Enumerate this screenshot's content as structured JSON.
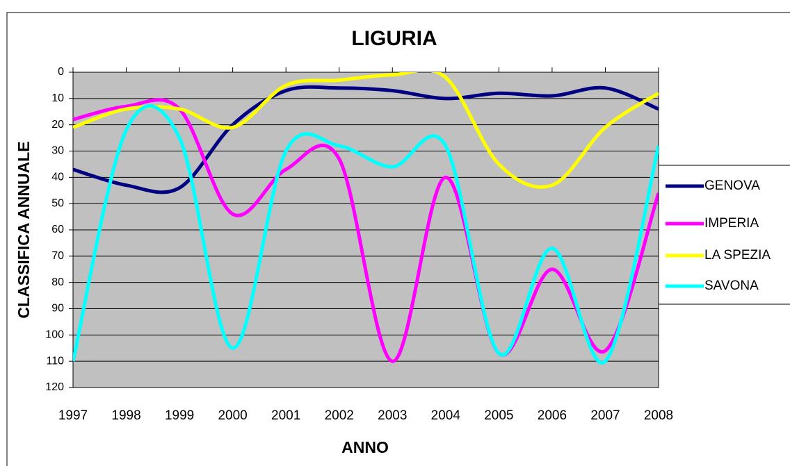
{
  "chart_data": {
    "type": "line",
    "title": "LIGURIA",
    "x_label": "ANNO",
    "y_label": "CLASSIFICA ANNUALE",
    "x": [
      1997,
      1998,
      1999,
      2000,
      2001,
      2002,
      2003,
      2004,
      2005,
      2006,
      2007,
      2008
    ],
    "xlim": [
      1997,
      2008
    ],
    "xticks": [
      1997,
      1998,
      1999,
      2000,
      2001,
      2002,
      2003,
      2004,
      2005,
      2006,
      2007,
      2008
    ],
    "ylim": [
      0,
      120
    ],
    "yticks": [
      0,
      10,
      20,
      30,
      40,
      50,
      60,
      70,
      80,
      90,
      100,
      110,
      120
    ],
    "y_reversed": true,
    "grid": true,
    "smooth": true,
    "legend": "right",
    "plot_background": "#c0c0c0",
    "series": [
      {
        "name": "GENOVA",
        "color": "#000080",
        "values": [
          37,
          43,
          44,
          20,
          7,
          6,
          7,
          10,
          8,
          9,
          6,
          14
        ]
      },
      {
        "name": "IMPERIA",
        "color": "#ff00ff",
        "values": [
          18,
          13,
          14,
          54,
          37,
          33,
          110,
          40,
          107,
          75,
          106,
          46
        ]
      },
      {
        "name": "LA SPEZIA",
        "color": "#ffff00",
        "values": [
          21,
          14,
          14,
          21,
          5,
          3,
          1,
          2,
          35,
          43,
          21,
          8
        ]
      },
      {
        "name": "SAVONA",
        "color": "#00ffff",
        "values": [
          110,
          22,
          25,
          105,
          30,
          28,
          36,
          28,
          107,
          67,
          110,
          28
        ]
      }
    ]
  }
}
